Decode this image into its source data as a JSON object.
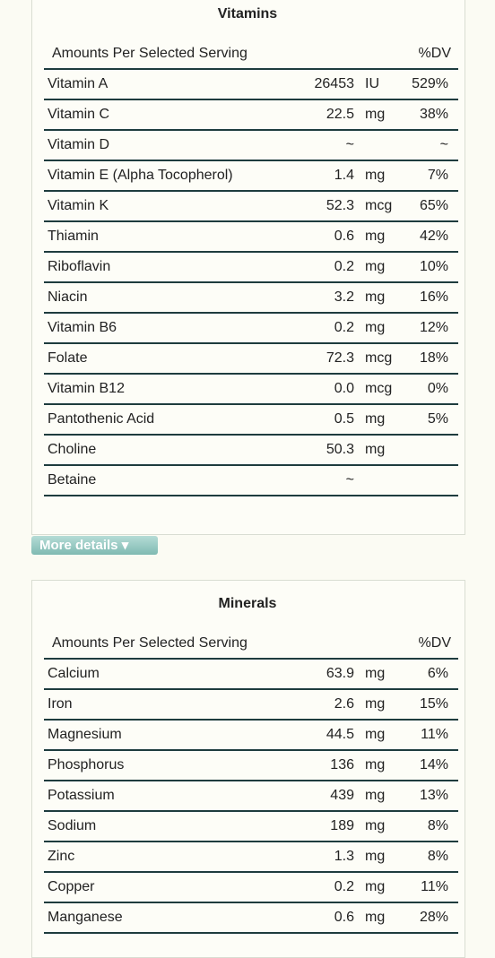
{
  "vitamins": {
    "title": "Vitamins",
    "header": {
      "label": "Amounts Per Selected Serving",
      "dv": "%DV"
    },
    "rows": [
      {
        "name": "Vitamin A",
        "amount": "26453",
        "unit": "IU",
        "dv": "529%"
      },
      {
        "name": "Vitamin C",
        "amount": "22.5",
        "unit": "mg",
        "dv": "38%"
      },
      {
        "name": "Vitamin D",
        "amount": "~",
        "dv": "~"
      },
      {
        "name": "Vitamin E (Alpha Tocopherol)",
        "amount": "1.4",
        "unit": "mg",
        "dv": "7%"
      },
      {
        "name": "Vitamin K",
        "amount": "52.3",
        "unit": "mcg",
        "dv": "65%"
      },
      {
        "name": "Thiamin",
        "amount": "0.6",
        "unit": "mg",
        "dv": "42%"
      },
      {
        "name": "Riboflavin",
        "amount": "0.2",
        "unit": "mg",
        "dv": "10%"
      },
      {
        "name": "Niacin",
        "amount": "3.2",
        "unit": "mg",
        "dv": "16%"
      },
      {
        "name": "Vitamin B6",
        "amount": "0.2",
        "unit": "mg",
        "dv": "12%"
      },
      {
        "name": "Folate",
        "amount": "72.3",
        "unit": "mcg",
        "dv": "18%"
      },
      {
        "name": "Vitamin B12",
        "amount": "0.0",
        "unit": "mcg",
        "dv": "0%"
      },
      {
        "name": "Pantothenic Acid",
        "amount": "0.5",
        "unit": "mg",
        "dv": "5%"
      },
      {
        "name": "Choline",
        "amount": "50.3",
        "unit": "mg"
      },
      {
        "name": "Betaine",
        "amount": "~"
      }
    ]
  },
  "more_details": "More details",
  "minerals": {
    "title": "Minerals",
    "header": {
      "label": "Amounts Per Selected Serving",
      "dv": "%DV"
    },
    "rows": [
      {
        "name": "Calcium",
        "amount": "63.9",
        "unit": "mg",
        "dv": "6%"
      },
      {
        "name": "Iron",
        "amount": "2.6",
        "unit": "mg",
        "dv": "15%"
      },
      {
        "name": "Magnesium",
        "amount": "44.5",
        "unit": "mg",
        "dv": "11%"
      },
      {
        "name": "Phosphorus",
        "amount": "136",
        "unit": "mg",
        "dv": "14%"
      },
      {
        "name": "Potassium",
        "amount": "439",
        "unit": "mg",
        "dv": "13%"
      },
      {
        "name": "Sodium",
        "amount": "189",
        "unit": "mg",
        "dv": "8%"
      },
      {
        "name": "Zinc",
        "amount": "1.3",
        "unit": "mg",
        "dv": "8%"
      },
      {
        "name": "Copper",
        "amount": "0.2",
        "unit": "mg",
        "dv": "11%"
      },
      {
        "name": "Manganese",
        "amount": "0.6",
        "unit": "mg",
        "dv": "28%"
      }
    ]
  }
}
